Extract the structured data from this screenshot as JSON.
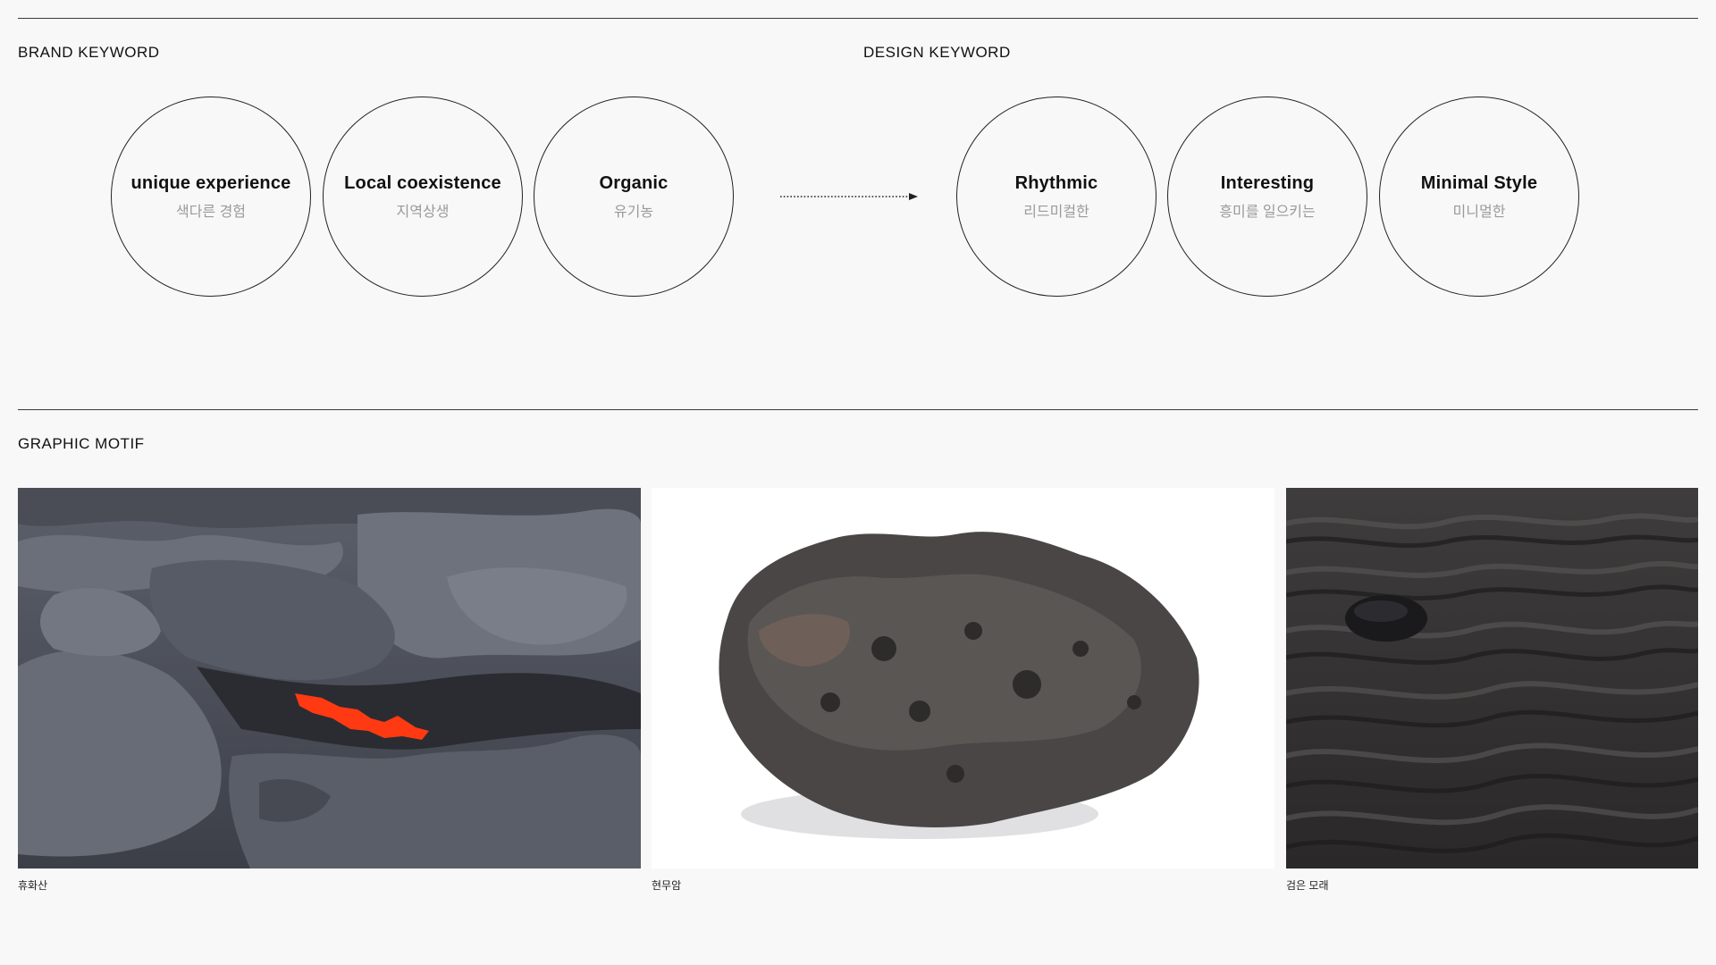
{
  "brand_keyword": {
    "title": "BRAND KEYWORD",
    "items": [
      {
        "en": "unique experience",
        "ko": "색다른 경험"
      },
      {
        "en": "Local coexistence",
        "ko": "지역상생"
      },
      {
        "en": "Organic",
        "ko": "유기농"
      }
    ]
  },
  "design_keyword": {
    "title": "DESIGN KEYWORD",
    "items": [
      {
        "en": "Rhythmic",
        "ko": "리드미컬한"
      },
      {
        "en": "Interesting",
        "ko": "흥미를 일으키는"
      },
      {
        "en": "Minimal Style",
        "ko": "미니멀한"
      }
    ]
  },
  "graphic_motif": {
    "title": "GRAPHIC MOTIF",
    "images": [
      {
        "caption": "휴화산",
        "subject": "dormant volcano lava rock with glowing lava crack"
      },
      {
        "caption": "현무암",
        "subject": "basalt rock on white background"
      },
      {
        "caption": "검은 모래",
        "subject": "black sand dunes with small stone"
      }
    ]
  },
  "colors": {
    "background": "#f8f8f8",
    "lava": "#ff3a12",
    "line": "#3a3a3a"
  }
}
